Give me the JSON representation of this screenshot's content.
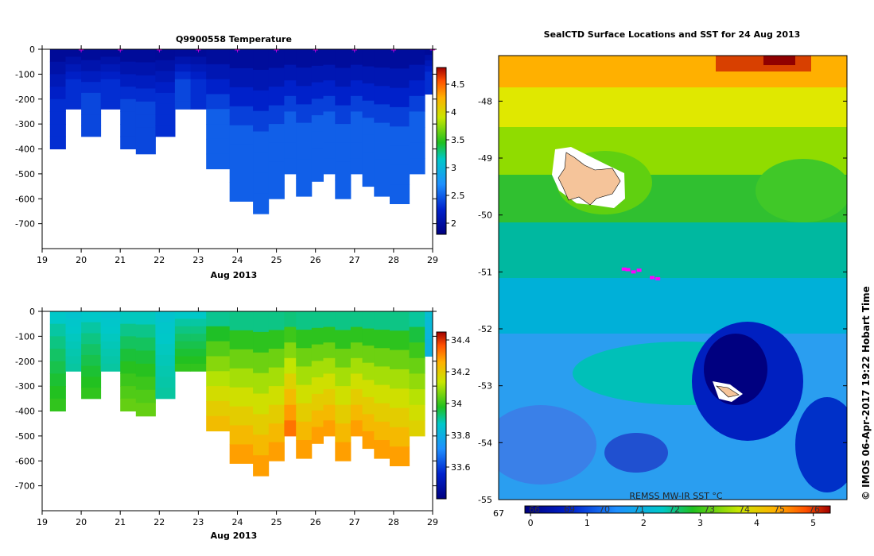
{
  "chart_data": [
    {
      "type": "heatmap",
      "title": "Q9900558  Temperature",
      "xlabel": "Aug 2013",
      "ylabel": "",
      "xlim": [
        19,
        29
      ],
      "ylim": [
        -800,
        0
      ],
      "x_ticks": [
        "19",
        "20",
        "21",
        "22",
        "23",
        "24",
        "25",
        "26",
        "27",
        "28",
        "29"
      ],
      "y_ticks": [
        "0",
        "-100",
        "-200",
        "-300",
        "-400",
        "-500",
        "-600",
        "-700"
      ],
      "colorbar_ticks": [
        "2",
        "2.5",
        "3",
        "3.5",
        "4",
        "4.5"
      ],
      "colorbar_range": [
        1.8,
        4.8
      ],
      "profiles": [
        {
          "x": 19.2,
          "max_depth": -400,
          "value": 2.3
        },
        {
          "x": 19.6,
          "max_depth": -240,
          "value": 2.3
        },
        {
          "x": 20.0,
          "max_depth": -350,
          "value": 2.4
        },
        {
          "x": 20.5,
          "max_depth": -240,
          "value": 2.3
        },
        {
          "x": 21.0,
          "max_depth": -400,
          "value": 2.4
        },
        {
          "x": 21.4,
          "max_depth": -420,
          "value": 2.4
        },
        {
          "x": 21.9,
          "max_depth": -350,
          "value": 2.3
        },
        {
          "x": 22.4,
          "max_depth": -240,
          "value": 2.4
        },
        {
          "x": 22.8,
          "max_depth": -240,
          "value": 2.3
        },
        {
          "x": 23.2,
          "max_depth": -480,
          "value": 2.5
        },
        {
          "x": 23.8,
          "max_depth": -610,
          "value": 2.5
        },
        {
          "x": 24.4,
          "max_depth": -660,
          "value": 2.5
        },
        {
          "x": 24.8,
          "max_depth": -600,
          "value": 2.5
        },
        {
          "x": 25.2,
          "max_depth": -500,
          "value": 2.5
        },
        {
          "x": 25.5,
          "max_depth": -590,
          "value": 2.5
        },
        {
          "x": 25.9,
          "max_depth": -530,
          "value": 2.5
        },
        {
          "x": 26.2,
          "max_depth": -500,
          "value": 2.5
        },
        {
          "x": 26.5,
          "max_depth": -600,
          "value": 2.5
        },
        {
          "x": 26.9,
          "max_depth": -500,
          "value": 2.5
        },
        {
          "x": 27.2,
          "max_depth": -550,
          "value": 2.5
        },
        {
          "x": 27.5,
          "max_depth": -590,
          "value": 2.5
        },
        {
          "x": 27.9,
          "max_depth": -620,
          "value": 2.5
        },
        {
          "x": 28.4,
          "max_depth": -500,
          "value": 2.5
        },
        {
          "x": 28.8,
          "max_depth": -180,
          "value": 2.3
        }
      ],
      "surface_markers_x": [
        20,
        21,
        22,
        23,
        24,
        25,
        26,
        27,
        28,
        29
      ]
    },
    {
      "type": "heatmap",
      "title": "",
      "xlabel": "Aug 2013",
      "ylabel": "",
      "xlim": [
        19,
        29
      ],
      "ylim": [
        -800,
        0
      ],
      "x_ticks": [
        "19",
        "20",
        "21",
        "22",
        "23",
        "24",
        "25",
        "26",
        "27",
        "28",
        "29"
      ],
      "y_ticks": [
        "0",
        "-100",
        "-200",
        "-300",
        "-400",
        "-500",
        "-600",
        "-700"
      ],
      "colorbar_ticks": [
        "33.6",
        "33.8",
        "34",
        "34.2",
        "34.4"
      ],
      "colorbar_range": [
        33.4,
        34.45
      ],
      "profiles": [
        {
          "x": 19.2,
          "max_depth": -400,
          "value": 34.0
        },
        {
          "x": 19.6,
          "max_depth": -240,
          "value": 33.9
        },
        {
          "x": 20.0,
          "max_depth": -350,
          "value": 34.0
        },
        {
          "x": 20.5,
          "max_depth": -240,
          "value": 33.9
        },
        {
          "x": 21.0,
          "max_depth": -400,
          "value": 34.05
        },
        {
          "x": 21.4,
          "max_depth": -420,
          "value": 34.05
        },
        {
          "x": 21.9,
          "max_depth": -350,
          "value": 33.9
        },
        {
          "x": 22.4,
          "max_depth": -240,
          "value": 34.0
        },
        {
          "x": 22.8,
          "max_depth": -240,
          "value": 34.0
        },
        {
          "x": 23.2,
          "max_depth": -480,
          "value": 34.25
        },
        {
          "x": 23.8,
          "max_depth": -610,
          "value": 34.3
        },
        {
          "x": 24.4,
          "max_depth": -660,
          "value": 34.3
        },
        {
          "x": 24.8,
          "max_depth": -600,
          "value": 34.3
        },
        {
          "x": 25.2,
          "max_depth": -500,
          "value": 34.35
        },
        {
          "x": 25.5,
          "max_depth": -590,
          "value": 34.3
        },
        {
          "x": 25.9,
          "max_depth": -530,
          "value": 34.3
        },
        {
          "x": 26.2,
          "max_depth": -500,
          "value": 34.3
        },
        {
          "x": 26.5,
          "max_depth": -600,
          "value": 34.3
        },
        {
          "x": 26.9,
          "max_depth": -500,
          "value": 34.3
        },
        {
          "x": 27.2,
          "max_depth": -550,
          "value": 34.3
        },
        {
          "x": 27.5,
          "max_depth": -590,
          "value": 34.3
        },
        {
          "x": 27.9,
          "max_depth": -620,
          "value": 34.3
        },
        {
          "x": 28.4,
          "max_depth": -500,
          "value": 34.2
        },
        {
          "x": 28.8,
          "max_depth": -180,
          "value": 33.8
        }
      ]
    },
    {
      "type": "heatmap",
      "title": "SealCTD Surface Locations and SST for 24 Aug 2013",
      "xlabel": "",
      "ylabel": "",
      "y_ticks": [
        "-48",
        "-49",
        "-50",
        "-51",
        "-52",
        "-53",
        "-54",
        "-55"
      ],
      "ylim": [
        -55,
        -47.2
      ],
      "x_tick_left": "67",
      "colorbar_label": "REMSS MW-IR SST °C",
      "colorbar_ticks": [
        "0",
        "1",
        "2",
        "3",
        "4",
        "5"
      ],
      "colorbar_top_ticks": [
        "66",
        "69",
        "70",
        "71",
        "72",
        "73",
        "74",
        "75",
        "76"
      ],
      "colorbar_range": [
        -0.1,
        5.3
      ],
      "seal_locations": [
        {
          "lon": 70.35,
          "lat": -50.95
        },
        {
          "lon": 70.45,
          "lat": -50.96
        },
        {
          "lon": 70.6,
          "lat": -51.0
        },
        {
          "lon": 70.75,
          "lat": -50.97
        },
        {
          "lon": 71.1,
          "lat": -51.1
        },
        {
          "lon": 71.25,
          "lat": -51.12
        }
      ]
    }
  ],
  "credit": "© IMOS 06-Apr-2017 19:22 Hobart Time"
}
